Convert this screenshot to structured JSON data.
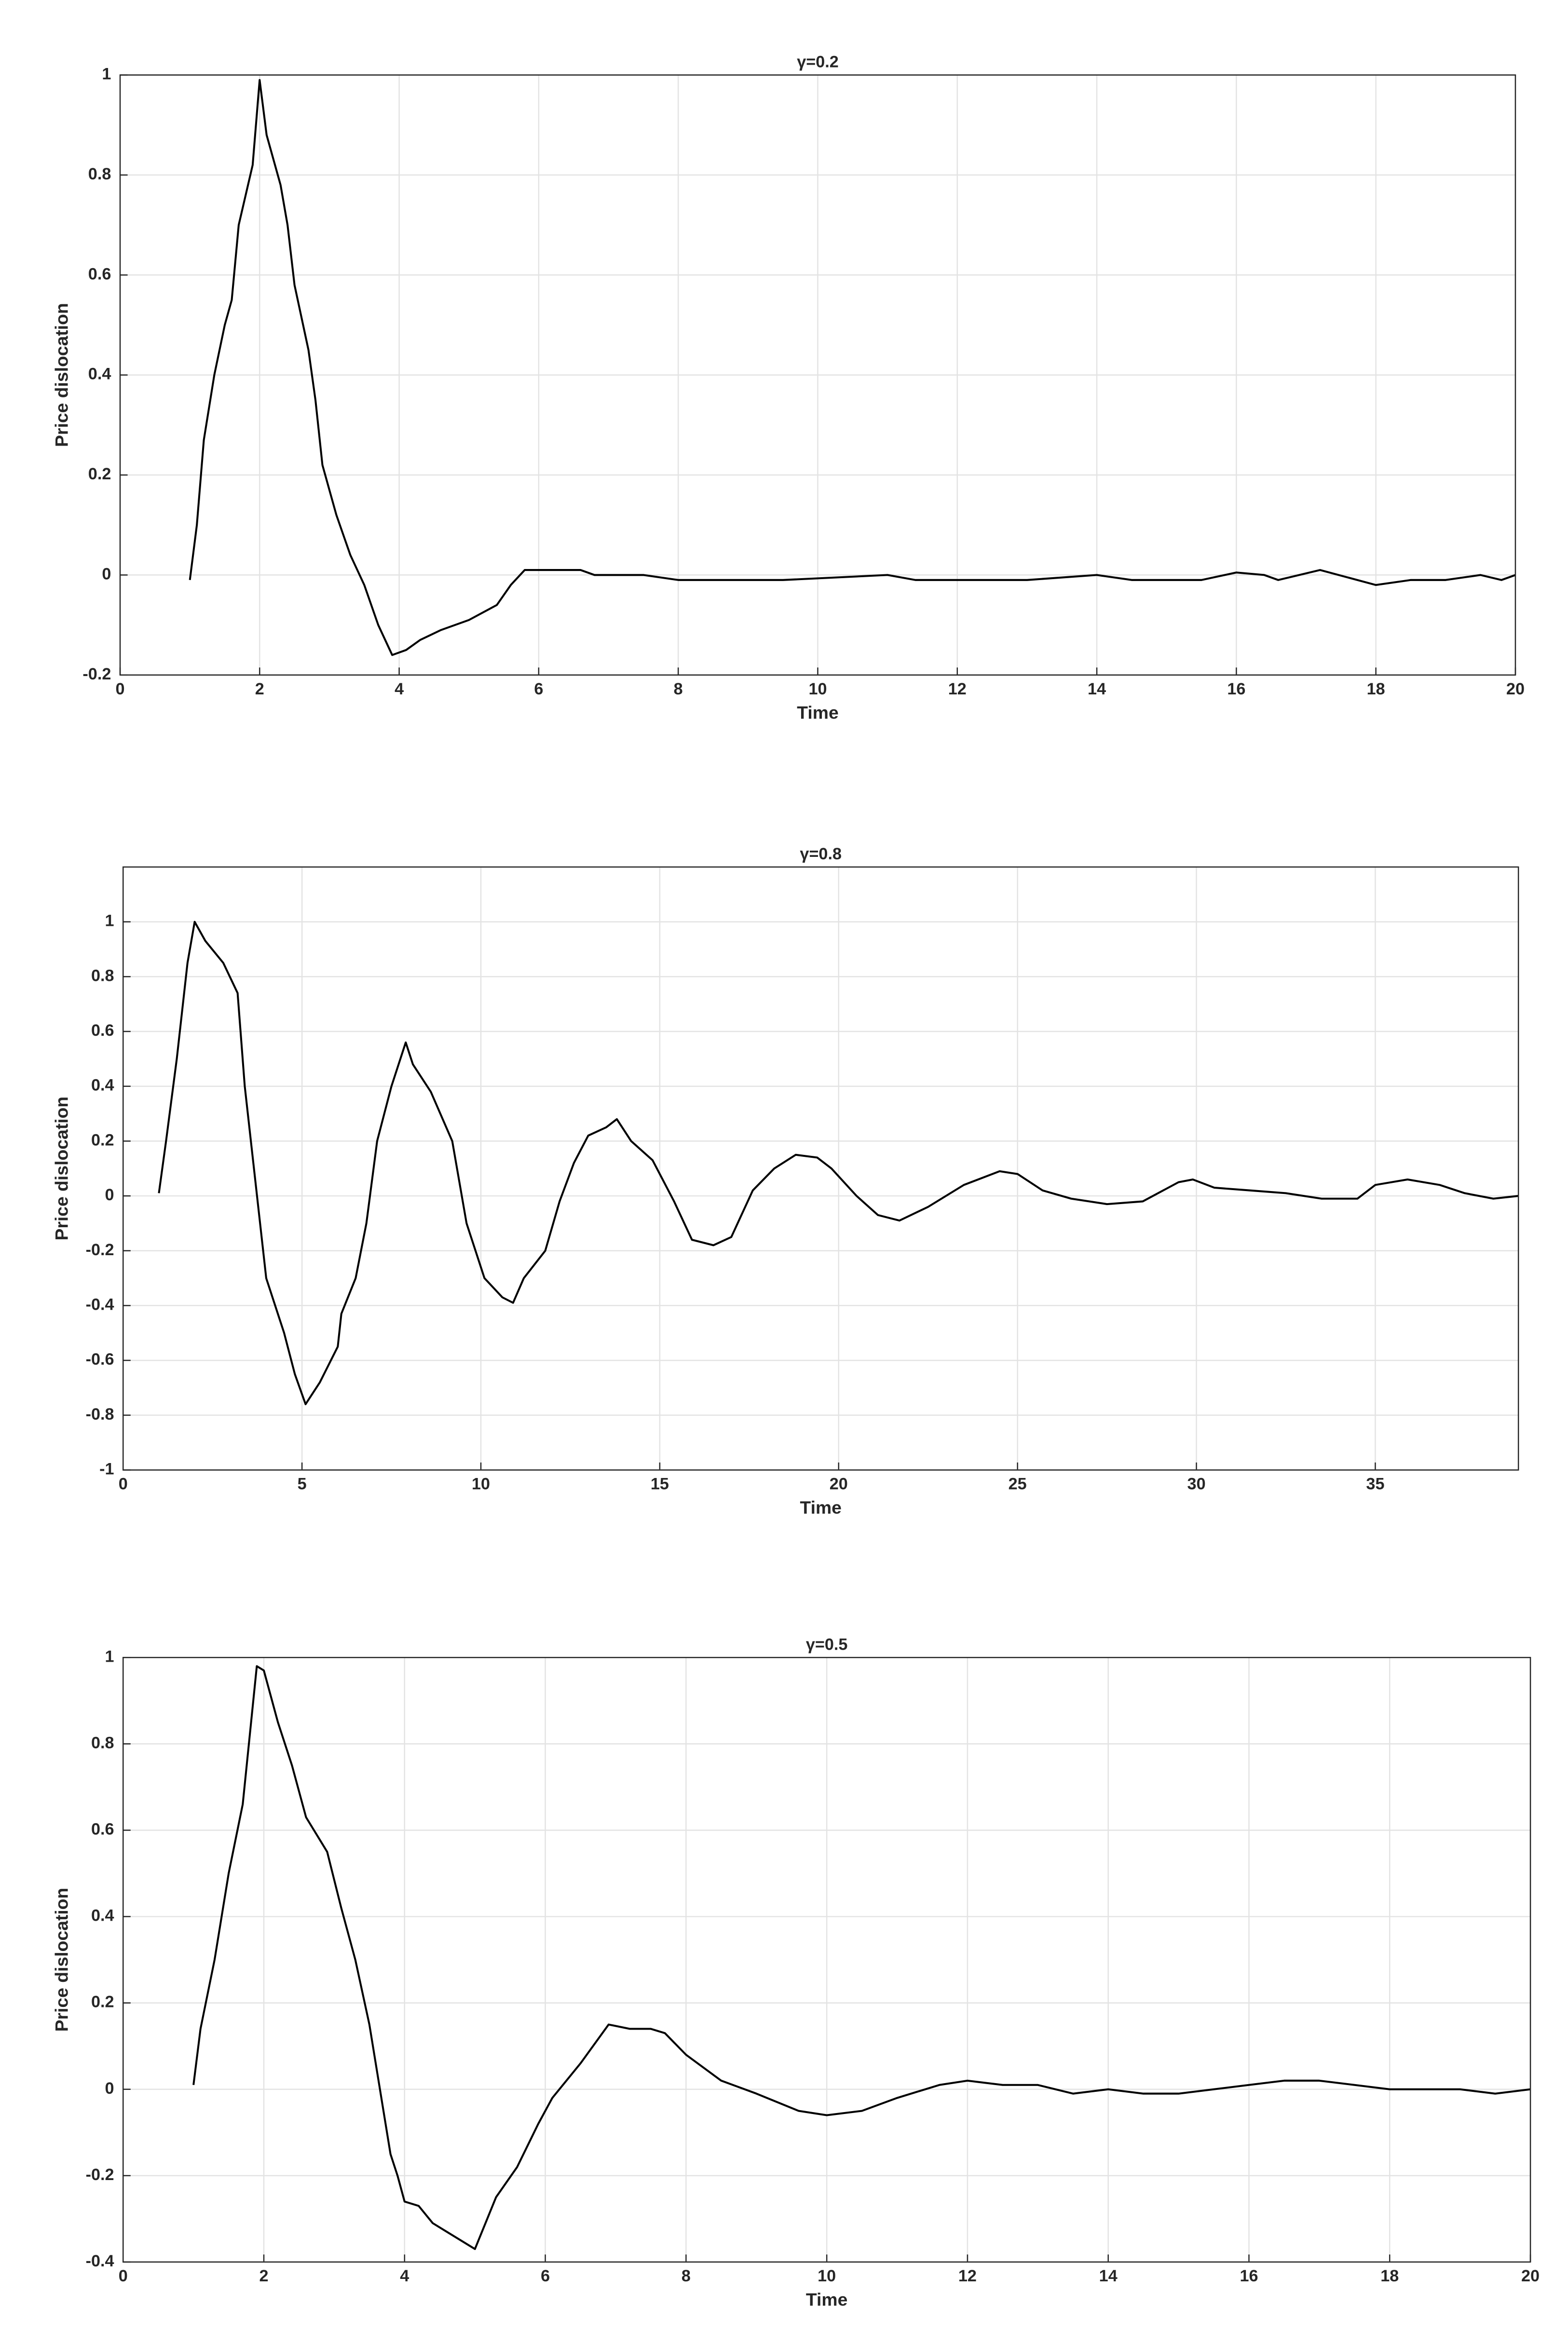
{
  "chart_data": [
    {
      "type": "line",
      "title": "γ=0.2",
      "x_label": "Time",
      "y_label": "Price dislocation",
      "grid": true,
      "xlim": [
        0,
        20
      ],
      "xticks": [
        0,
        2,
        4,
        6,
        8,
        10,
        12,
        14,
        16,
        18,
        20
      ],
      "ylim": [
        -0.2,
        1
      ],
      "yticks": [
        -0.2,
        0,
        0.2,
        0.4,
        0.6,
        0.8,
        1
      ],
      "series": [
        {
          "color": "#000000",
          "x": [
            1.0,
            1.1,
            1.2,
            1.35,
            1.5,
            1.6,
            1.7,
            1.9,
            2.0,
            2.1,
            2.3,
            2.4,
            2.5,
            2.7,
            2.8,
            2.9,
            3.1,
            3.3,
            3.5,
            3.7,
            3.9,
            4.1,
            4.3,
            4.6,
            5.0,
            5.4,
            5.6,
            5.8,
            6.0,
            6.6,
            6.8,
            7.5,
            8.0,
            9.5,
            11,
            11.4,
            12,
            13,
            14,
            14.5,
            15.5,
            16,
            16.4,
            16.6,
            17.2,
            18,
            18.5,
            19,
            19.5,
            19.8,
            20
          ],
          "values": [
            -0.01,
            0.1,
            0.27,
            0.4,
            0.5,
            0.55,
            0.7,
            0.82,
            0.99,
            0.88,
            0.78,
            0.7,
            0.58,
            0.45,
            0.35,
            0.22,
            0.12,
            0.04,
            -0.02,
            -0.1,
            -0.16,
            -0.15,
            -0.13,
            -0.11,
            -0.09,
            -0.06,
            -0.02,
            0.01,
            0.01,
            0.01,
            0,
            0,
            -0.01,
            -0.01,
            0,
            -0.01,
            -0.01,
            -0.01,
            0,
            -0.01,
            -0.01,
            0.005,
            0,
            -0.01,
            0.01,
            -0.02,
            -0.01,
            -0.01,
            0,
            -0.01,
            0
          ]
        }
      ]
    },
    {
      "type": "line",
      "title": "γ=0.8",
      "x_label": "Time",
      "y_label": "Price dislocation",
      "grid": true,
      "xlim": [
        0,
        39
      ],
      "xticks": [
        0,
        5,
        10,
        15,
        20,
        25,
        30,
        35
      ],
      "ylim": [
        -1,
        1.2
      ],
      "yticks": [
        -1,
        -0.8,
        -0.6,
        -0.4,
        -0.2,
        0,
        0.2,
        0.4,
        0.6,
        0.8,
        1
      ],
      "series": [
        {
          "color": "#000000",
          "x": [
            1,
            1.2,
            1.5,
            1.8,
            2.0,
            2.3,
            2.8,
            3.2,
            3.4,
            3.7,
            4.0,
            4.5,
            4.8,
            5.1,
            5.5,
            6.0,
            6.1,
            6.5,
            6.8,
            7.1,
            7.5,
            7.9,
            8.1,
            8.6,
            9.2,
            9.6,
            10.1,
            10.6,
            10.9,
            11.2,
            11.8,
            12.2,
            12.6,
            13.0,
            13.5,
            13.8,
            14.2,
            14.8,
            15.4,
            15.9,
            16.5,
            17.0,
            17.6,
            18.2,
            18.8,
            19.4,
            19.8,
            20.5,
            21.1,
            21.7,
            22.5,
            23.5,
            24.5,
            25,
            25.7,
            26.5,
            27.5,
            28.5,
            29.5,
            29.9,
            30.5,
            31.5,
            32.5,
            33.5,
            34.5,
            35,
            35.9,
            36.8,
            37.5,
            38.3,
            39
          ],
          "values": [
            0.01,
            0.2,
            0.5,
            0.85,
            1.0,
            0.93,
            0.85,
            0.74,
            0.4,
            0.05,
            -0.3,
            -0.5,
            -0.65,
            -0.76,
            -0.68,
            -0.55,
            -0.43,
            -0.3,
            -0.1,
            0.2,
            0.4,
            0.56,
            0.48,
            0.38,
            0.2,
            -0.1,
            -0.3,
            -0.37,
            -0.39,
            -0.3,
            -0.2,
            -0.02,
            0.12,
            0.22,
            0.25,
            0.28,
            0.2,
            0.13,
            -0.02,
            -0.16,
            -0.18,
            -0.15,
            0.02,
            0.1,
            0.15,
            0.14,
            0.1,
            0,
            -0.07,
            -0.09,
            -0.04,
            0.04,
            0.09,
            0.08,
            0.02,
            -0.01,
            -0.03,
            -0.02,
            0.05,
            0.06,
            0.03,
            0.02,
            0.01,
            -0.01,
            -0.01,
            0.04,
            0.06,
            0.04,
            0.01,
            -0.01,
            0
          ]
        }
      ]
    },
    {
      "type": "line",
      "title": "γ=0.5",
      "x_label": "Time",
      "y_label": "Price dislocation",
      "grid": true,
      "xlim": [
        0,
        20
      ],
      "xticks": [
        0,
        2,
        4,
        6,
        8,
        10,
        12,
        14,
        16,
        18,
        20
      ],
      "ylim": [
        -0.4,
        1
      ],
      "yticks": [
        -0.4,
        -0.2,
        0,
        0.2,
        0.4,
        0.6,
        0.8,
        1
      ],
      "series": [
        {
          "color": "#000000",
          "x": [
            1,
            1.1,
            1.3,
            1.5,
            1.7,
            1.9,
            2.0,
            2.2,
            2.4,
            2.6,
            2.9,
            3.1,
            3.3,
            3.5,
            3.7,
            3.8,
            3.9,
            4.0,
            4.2,
            4.4,
            4.6,
            4.8,
            5.0,
            5.3,
            5.6,
            5.9,
            6.1,
            6.5,
            6.9,
            7.2,
            7.5,
            7.7,
            8.0,
            8.5,
            9.0,
            9.6,
            10.0,
            10.5,
            11,
            11.6,
            12,
            12.5,
            13,
            13.5,
            14,
            14.5,
            15,
            15.5,
            16,
            16.5,
            17,
            17.5,
            18,
            19,
            19.5,
            20
          ],
          "values": [
            0.01,
            0.14,
            0.3,
            0.5,
            0.66,
            0.98,
            0.97,
            0.85,
            0.75,
            0.63,
            0.55,
            0.42,
            0.3,
            0.15,
            -0.05,
            -0.15,
            -0.2,
            -0.26,
            -0.27,
            -0.31,
            -0.33,
            -0.35,
            -0.37,
            -0.25,
            -0.18,
            -0.08,
            -0.02,
            0.06,
            0.15,
            0.14,
            0.14,
            0.13,
            0.08,
            0.02,
            -0.01,
            -0.05,
            -0.06,
            -0.05,
            -0.02,
            0.01,
            0.02,
            0.01,
            0.01,
            -0.01,
            0,
            -0.01,
            -0.01,
            0,
            0.01,
            0.02,
            0.02,
            0.01,
            0,
            0,
            -0.01,
            0
          ]
        }
      ]
    }
  ]
}
